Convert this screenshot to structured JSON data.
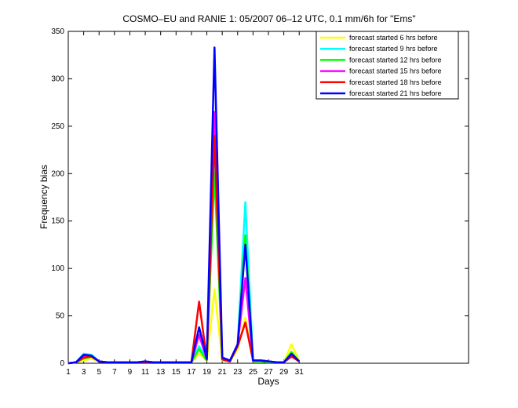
{
  "chart_data": {
    "type": "line",
    "title": "COSMO–EU and RANIE 1: 05/2007 06–12 UTC, 0.1 mm/6h for \"Ems\"",
    "xlabel": "Days",
    "ylabel": "Frequency bias",
    "xlim": [
      1,
      53
    ],
    "ylim": [
      0,
      350
    ],
    "xticks": [
      1,
      3,
      5,
      7,
      9,
      11,
      13,
      15,
      17,
      19,
      21,
      23,
      25,
      27,
      29,
      31
    ],
    "yticks": [
      0,
      50,
      100,
      150,
      200,
      250,
      300,
      350
    ],
    "grid": false,
    "legend_position": "top-right",
    "x": [
      1,
      2,
      3,
      4,
      5,
      6,
      7,
      8,
      9,
      10,
      11,
      12,
      13,
      14,
      15,
      16,
      17,
      18,
      19,
      20,
      21,
      22,
      23,
      24,
      25,
      26,
      27,
      28,
      29,
      30,
      31
    ],
    "series": [
      {
        "name": "forecast started 6 hrs before",
        "color": "#ffff00",
        "values": [
          0,
          1,
          3,
          5,
          2,
          1,
          1,
          1,
          1,
          1,
          1,
          1,
          1,
          1,
          1,
          1,
          1,
          10,
          3,
          78,
          3,
          2,
          15,
          48,
          2,
          2,
          1,
          1,
          1,
          20,
          3
        ]
      },
      {
        "name": "forecast started 9 hrs before",
        "color": "#00ffff",
        "values": [
          0,
          1,
          10,
          9,
          2,
          1,
          1,
          1,
          1,
          1,
          2,
          1,
          1,
          1,
          1,
          1,
          1,
          18,
          4,
          215,
          5,
          2,
          20,
          170,
          3,
          3,
          2,
          1,
          1,
          9,
          2
        ]
      },
      {
        "name": "forecast started 12 hrs before",
        "color": "#00ff00",
        "values": [
          0,
          1,
          5,
          7,
          2,
          1,
          1,
          1,
          1,
          1,
          1,
          1,
          1,
          1,
          1,
          1,
          1,
          15,
          3,
          200,
          4,
          2,
          18,
          135,
          2,
          2,
          1,
          1,
          1,
          12,
          2
        ]
      },
      {
        "name": "forecast started 15 hrs before",
        "color": "#ff00ff",
        "values": [
          0,
          1,
          8,
          8,
          2,
          1,
          1,
          1,
          1,
          1,
          1,
          1,
          1,
          1,
          1,
          1,
          1,
          30,
          4,
          265,
          5,
          2,
          20,
          90,
          3,
          3,
          2,
          1,
          1,
          8,
          2
        ]
      },
      {
        "name": "forecast started 18 hrs before",
        "color": "#ff0000",
        "values": [
          0,
          1,
          6,
          7,
          2,
          1,
          1,
          1,
          1,
          1,
          1,
          1,
          1,
          1,
          1,
          1,
          1,
          65,
          4,
          240,
          4,
          2,
          18,
          43,
          3,
          3,
          2,
          1,
          1,
          7,
          2
        ]
      },
      {
        "name": "forecast started 21 hrs before",
        "color": "#0000ff",
        "values": [
          0,
          1,
          9,
          8,
          2,
          1,
          1,
          1,
          1,
          1,
          2,
          1,
          1,
          1,
          1,
          1,
          1,
          38,
          5,
          333,
          6,
          3,
          20,
          125,
          3,
          3,
          2,
          1,
          1,
          10,
          2
        ]
      }
    ]
  }
}
